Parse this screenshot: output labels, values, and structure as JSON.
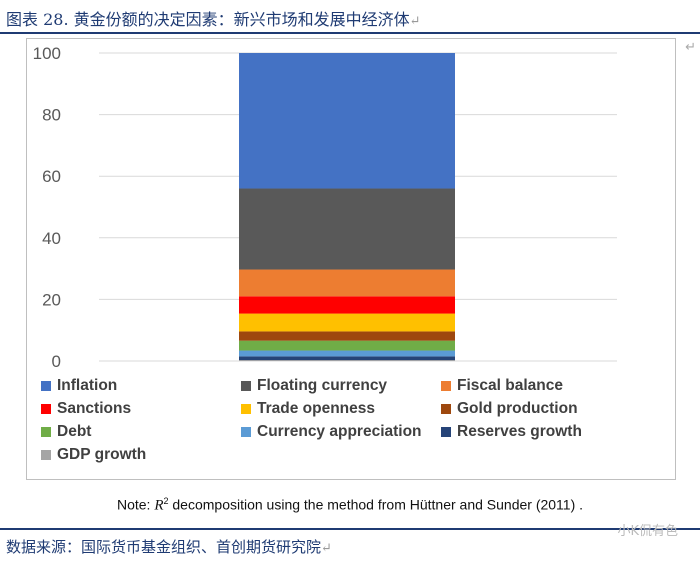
{
  "header": {
    "title": "图表 28. 黄金份额的决定因素：新兴市场和发展中经济体",
    "return_mark": "↵"
  },
  "side_mark": "↵",
  "chart_data": {
    "type": "bar",
    "stacked": true,
    "categories": [
      ""
    ],
    "ylim": [
      0,
      100
    ],
    "yticks": [
      0,
      20,
      40,
      60,
      80,
      100
    ],
    "grid": true,
    "legend_position": "bottom",
    "series": [
      {
        "name": "GDP growth",
        "values": [
          0.3
        ],
        "color": "#a5a5a5"
      },
      {
        "name": "Reserves growth",
        "values": [
          1.2
        ],
        "color": "#264478"
      },
      {
        "name": "Currency appreciation",
        "values": [
          1.9
        ],
        "color": "#5b9bd5"
      },
      {
        "name": "Debt",
        "values": [
          3.2
        ],
        "color": "#70ad47"
      },
      {
        "name": "Gold production",
        "values": [
          3.0
        ],
        "color": "#9e480e"
      },
      {
        "name": "Trade openness",
        "values": [
          5.8
        ],
        "color": "#ffc000"
      },
      {
        "name": "Sanctions",
        "values": [
          5.6
        ],
        "color": "#ff0000"
      },
      {
        "name": "Fiscal balance",
        "values": [
          8.7
        ],
        "color": "#ed7d31"
      },
      {
        "name": "Floating currency",
        "values": [
          26.3
        ],
        "color": "#595959"
      },
      {
        "name": "Inflation",
        "values": [
          44.0
        ],
        "color": "#4472c4"
      }
    ],
    "legend_order": [
      "Inflation",
      "Floating currency",
      "Fiscal balance",
      "Sanctions",
      "Trade openness",
      "Gold production",
      "Debt",
      "Currency appreciation",
      "Reserves growth",
      "GDP growth"
    ]
  },
  "note": {
    "prefix": "Note: ",
    "r": "R",
    "sup": "2",
    "suffix": " decomposition using the method from Hüttner and Sunder (2011) ."
  },
  "source": {
    "text": "数据来源：国际货币基金组织、首创期货研究院",
    "return_mark": "↵"
  },
  "watermark": "小K侃有色"
}
